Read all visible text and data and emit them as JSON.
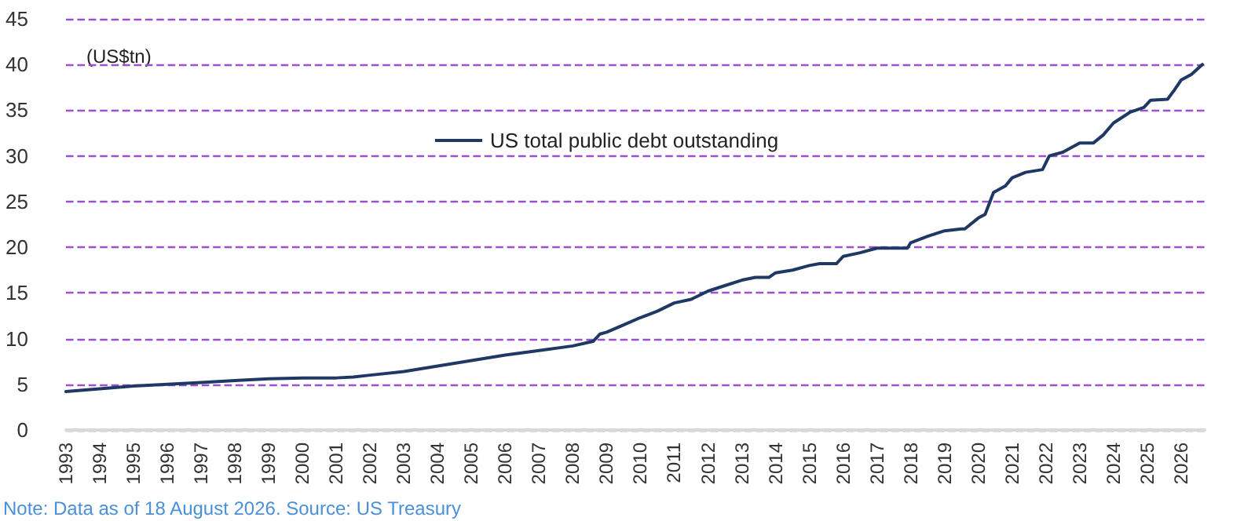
{
  "chart_data": {
    "type": "line",
    "ylabel": "(US$tn)",
    "annotations": [
      "Note: Data as of 18 August 2026. Source: US Treasury"
    ],
    "x": [
      1993.0,
      1994,
      1995,
      1996,
      1997,
      1998,
      1999,
      2000,
      2000.5,
      2001,
      2001.5,
      2002,
      2003,
      2004,
      2005,
      2006,
      2007,
      2008,
      2008.6,
      2008.8,
      2009,
      2009.5,
      2010,
      2010.5,
      2011,
      2011.5,
      2012,
      2012.5,
      2013,
      2013.4,
      2013.8,
      2014,
      2014.5,
      2015,
      2015.3,
      2015.8,
      2016,
      2016.5,
      2017,
      2017.3,
      2017.9,
      2018,
      2018.5,
      2019,
      2019.5,
      2019.6,
      2020,
      2020.2,
      2020.45,
      2020.8,
      2021,
      2021.4,
      2021.9,
      2022.1,
      2022.5,
      2023,
      2023.4,
      2023.7,
      2024,
      2024.5,
      2024.9,
      2025.1,
      2025.6,
      2025.8,
      2026,
      2026.3,
      2026.63
    ],
    "series": [
      {
        "name": "US total public debt outstanding",
        "color": "#1f3864",
        "values": [
          4.2,
          4.5,
          4.8,
          5.0,
          5.2,
          5.4,
          5.6,
          5.7,
          5.7,
          5.7,
          5.8,
          6.0,
          6.4,
          7.0,
          7.6,
          8.2,
          8.7,
          9.2,
          9.7,
          10.5,
          10.7,
          11.5,
          12.3,
          13.0,
          13.9,
          14.3,
          15.2,
          15.8,
          16.4,
          16.7,
          16.7,
          17.2,
          17.5,
          18.0,
          18.2,
          18.2,
          19.0,
          19.4,
          19.9,
          19.9,
          19.9,
          20.5,
          21.2,
          21.8,
          22.0,
          22.0,
          23.2,
          23.6,
          26.0,
          26.7,
          27.6,
          28.2,
          28.5,
          30.0,
          30.4,
          31.4,
          31.4,
          32.3,
          33.6,
          34.8,
          35.3,
          36.1,
          36.2,
          37.2,
          38.3,
          38.9,
          40.0
        ]
      }
    ],
    "xlim": [
      1993,
      2026.7
    ],
    "xticks": [
      1993,
      1994,
      1995,
      1996,
      1997,
      1998,
      1999,
      2000,
      2001,
      2002,
      2003,
      2004,
      2005,
      2006,
      2007,
      2008,
      2009,
      2010,
      2011,
      2012,
      2013,
      2014,
      2015,
      2016,
      2017,
      2018,
      2019,
      2020,
      2021,
      2022,
      2023,
      2024,
      2025,
      2026
    ],
    "ylim": [
      0,
      45
    ],
    "yticks": [
      0,
      5,
      10,
      15,
      20,
      25,
      30,
      35,
      40,
      45
    ],
    "grid": "y",
    "legend": "top",
    "marker": "none",
    "line_style": "solid"
  }
}
